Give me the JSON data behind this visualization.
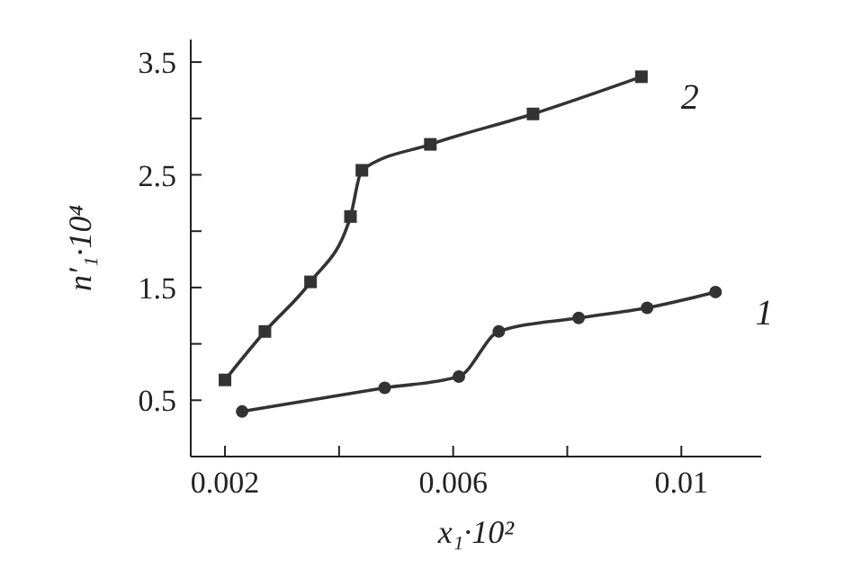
{
  "chart_data": {
    "type": "line",
    "xlabel": "x₁·10²",
    "ylabel": "n′₁·10⁴",
    "xlim": [
      0.0014,
      0.0114
    ],
    "ylim": [
      0,
      3.7
    ],
    "xticks": [
      0.002,
      {
        "value": 0.004,
        "label": null
      },
      0.006,
      {
        "value": 0.008,
        "label": null
      },
      0.01
    ],
    "yticks": [
      0.5,
      {
        "value": 1,
        "label": null
      },
      1.5,
      {
        "value": 2,
        "label": null
      },
      2.5,
      {
        "value": 3,
        "label": null
      },
      3.5
    ],
    "series": [
      {
        "name": "1",
        "color": "#333333",
        "marker": "circle",
        "x": [
          0.0023,
          0.0048,
          0.0061,
          0.0068,
          0.0082,
          0.0094,
          0.0106
        ],
        "values": [
          0.4,
          0.61,
          0.71,
          1.11,
          1.23,
          1.32,
          1.46
        ]
      },
      {
        "name": "2",
        "color": "#333333",
        "marker": "square",
        "x": [
          0.002,
          0.0027,
          0.0035,
          0.0042,
          0.0044,
          0.0056,
          0.0074,
          0.0093
        ],
        "values": [
          0.68,
          1.11,
          1.55,
          2.13,
          2.54,
          2.77,
          3.04,
          3.37
        ]
      }
    ]
  }
}
